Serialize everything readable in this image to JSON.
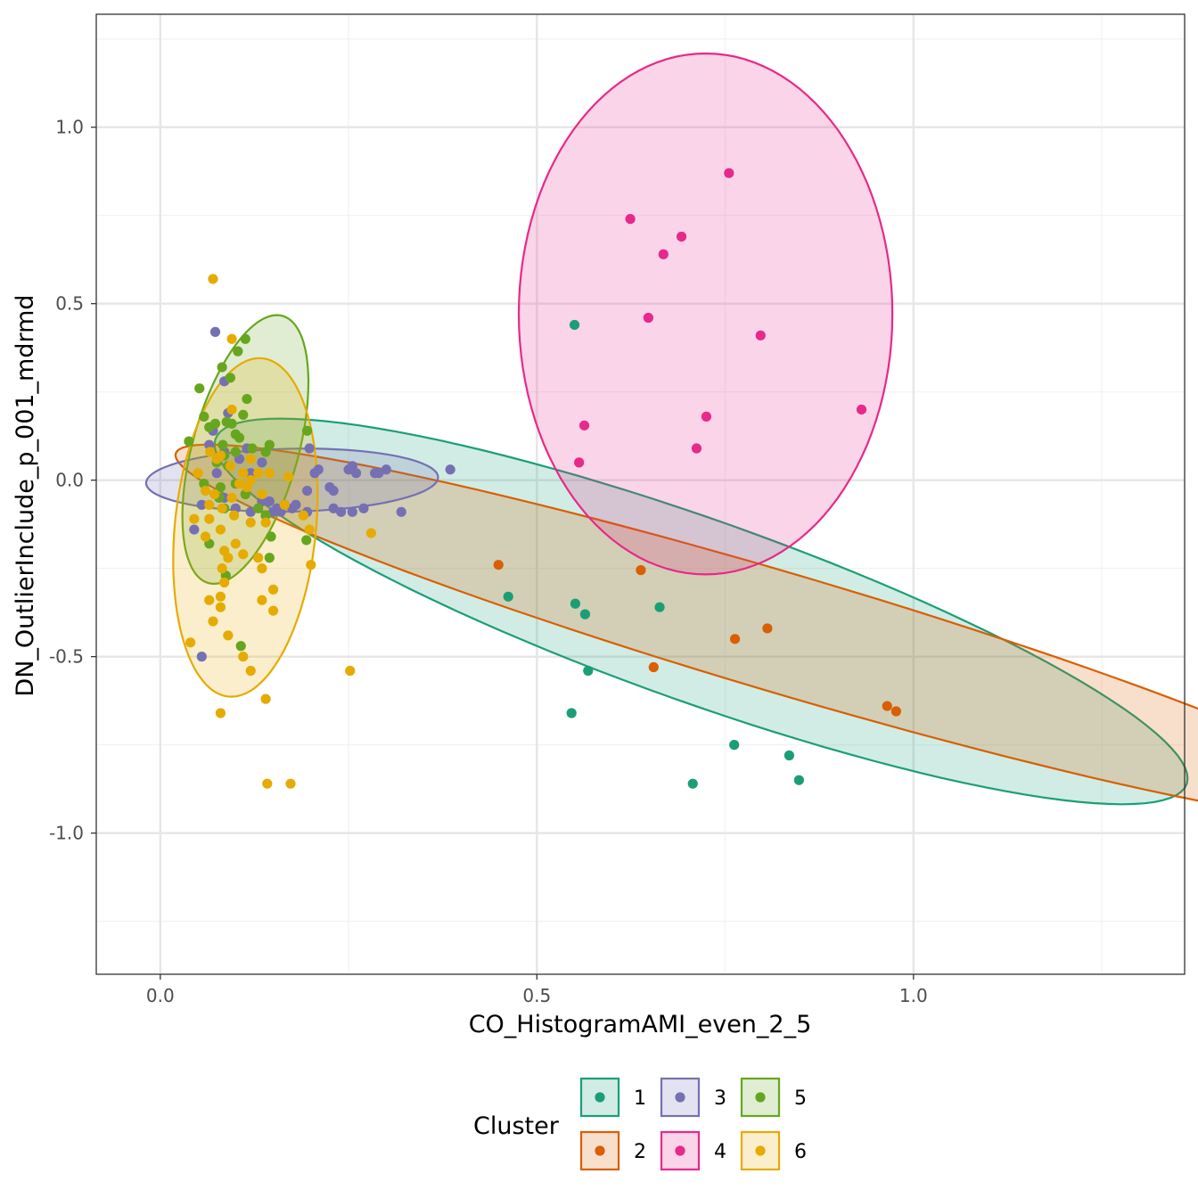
{
  "chart_data": {
    "type": "scatter",
    "title": "",
    "xlabel": "CO_HistogramAMI_even_2_5",
    "ylabel": "DN_OutlierInclude_p_001_mdrmd",
    "xlim": [
      -0.085,
      1.36
    ],
    "ylim": [
      -1.4,
      1.32
    ],
    "x_ticks": [
      0.0,
      0.5,
      1.0
    ],
    "x_tick_labels": [
      "0.0",
      "0.5",
      "1.0"
    ],
    "y_ticks": [
      -1.0,
      -0.5,
      0.0,
      0.5,
      1.0
    ],
    "y_tick_labels": [
      "-1.0",
      "-0.5",
      "0.0",
      "0.5",
      "1.0"
    ],
    "grid": true,
    "legend": {
      "title": "Cluster",
      "position": "bottom"
    },
    "series": [
      {
        "name": "1",
        "color": "#1B9E77",
        "points": [
          [
            0.55,
            0.44
          ],
          [
            0.462,
            -0.33
          ],
          [
            0.551,
            -0.35
          ],
          [
            0.564,
            -0.38
          ],
          [
            0.568,
            -0.54
          ],
          [
            0.546,
            -0.66
          ],
          [
            0.663,
            -0.36
          ],
          [
            0.762,
            -0.75
          ],
          [
            0.835,
            -0.78
          ],
          [
            0.848,
            -0.85
          ],
          [
            0.707,
            -0.86
          ]
        ],
        "ellipse": {
          "center": [
            0.718,
            -0.372
          ],
          "semi_axes": [
            0.818,
            0.216
          ],
          "angle_deg": -39.5
        }
      },
      {
        "name": "2",
        "color": "#D95F02",
        "points": [
          [
            0.449,
            -0.24
          ],
          [
            0.638,
            -0.255
          ],
          [
            0.763,
            -0.45
          ],
          [
            0.806,
            -0.42
          ],
          [
            0.655,
            -0.53
          ],
          [
            0.965,
            -0.64
          ],
          [
            0.977,
            -0.655
          ]
        ],
        "ellipse": {
          "center": [
            0.831,
            -0.436
          ],
          "semi_axes": [
            0.961,
            0.149
          ],
          "angle_deg": -32.9
        }
      },
      {
        "name": "3",
        "color": "#7570B3",
        "points": [
          [
            0.073,
            0.42
          ],
          [
            0.085,
            0.28
          ],
          [
            0.09,
            0.19
          ],
          [
            0.07,
            0.14
          ],
          [
            0.065,
            0.1
          ],
          [
            0.085,
            0.08
          ],
          [
            0.115,
            0.09
          ],
          [
            0.105,
            0.06
          ],
          [
            0.135,
            0.05
          ],
          [
            0.075,
            0.02
          ],
          [
            0.12,
            0.02
          ],
          [
            0.055,
            -0.07
          ],
          [
            0.085,
            -0.05
          ],
          [
            0.1,
            -0.08
          ],
          [
            0.12,
            -0.09
          ],
          [
            0.135,
            -0.06
          ],
          [
            0.145,
            -0.06
          ],
          [
            0.14,
            -0.1
          ],
          [
            0.155,
            -0.08
          ],
          [
            0.165,
            -0.07
          ],
          [
            0.16,
            -0.09
          ],
          [
            0.175,
            -0.08
          ],
          [
            0.18,
            -0.07
          ],
          [
            0.195,
            -0.09
          ],
          [
            0.195,
            -0.03
          ],
          [
            0.205,
            0.02
          ],
          [
            0.21,
            0.03
          ],
          [
            0.198,
            0.09
          ],
          [
            0.225,
            -0.02
          ],
          [
            0.23,
            -0.03
          ],
          [
            0.23,
            -0.08
          ],
          [
            0.24,
            -0.09
          ],
          [
            0.255,
            -0.09
          ],
          [
            0.25,
            0.03
          ],
          [
            0.255,
            0.04
          ],
          [
            0.26,
            0.02
          ],
          [
            0.27,
            -0.08
          ],
          [
            0.285,
            0.02
          ],
          [
            0.29,
            0.02
          ],
          [
            0.3,
            0.03
          ],
          [
            0.32,
            -0.09
          ],
          [
            0.385,
            0.03
          ],
          [
            0.045,
            -0.14
          ],
          [
            0.055,
            -0.5
          ],
          [
            0.15,
            -0.09
          ]
        ],
        "ellipse": {
          "center": [
            0.175,
            0.0
          ],
          "semi_axes": [
            0.194,
            0.089
          ],
          "angle_deg": 3.0
        }
      },
      {
        "name": "4",
        "color": "#E7298A",
        "points": [
          [
            0.755,
            0.87
          ],
          [
            0.624,
            0.74
          ],
          [
            0.692,
            0.69
          ],
          [
            0.668,
            0.64
          ],
          [
            0.648,
            0.46
          ],
          [
            0.797,
            0.41
          ],
          [
            0.931,
            0.2
          ],
          [
            0.725,
            0.18
          ],
          [
            0.563,
            0.155
          ],
          [
            0.712,
            0.09
          ],
          [
            0.556,
            0.05
          ]
        ],
        "ellipse": {
          "center": [
            0.724,
            0.471
          ],
          "semi_axes": [
            0.248,
            0.738
          ],
          "angle_deg": 0.0
        }
      },
      {
        "name": "5",
        "color": "#66A61E",
        "points": [
          [
            0.113,
            0.4
          ],
          [
            0.103,
            0.365
          ],
          [
            0.082,
            0.32
          ],
          [
            0.093,
            0.29
          ],
          [
            0.052,
            0.26
          ],
          [
            0.115,
            0.23
          ],
          [
            0.058,
            0.18
          ],
          [
            0.11,
            0.185
          ],
          [
            0.088,
            0.165
          ],
          [
            0.073,
            0.16
          ],
          [
            0.065,
            0.15
          ],
          [
            0.095,
            0.16
          ],
          [
            0.1,
            0.13
          ],
          [
            0.105,
            0.12
          ],
          [
            0.038,
            0.11
          ],
          [
            0.083,
            0.1
          ],
          [
            0.122,
            0.09
          ],
          [
            0.14,
            0.08
          ],
          [
            0.145,
            0.1
          ],
          [
            0.1,
            0.08
          ],
          [
            0.085,
            0.07
          ],
          [
            0.075,
            0.05
          ],
          [
            0.09,
            0.04
          ],
          [
            0.195,
            0.14
          ],
          [
            0.058,
            -0.01
          ],
          [
            0.08,
            -0.02
          ],
          [
            0.078,
            -0.05
          ],
          [
            0.085,
            -0.08
          ],
          [
            0.113,
            -0.04
          ],
          [
            0.13,
            -0.08
          ],
          [
            0.14,
            -0.1
          ],
          [
            0.147,
            -0.16
          ],
          [
            0.194,
            -0.17
          ],
          [
            0.065,
            -0.18
          ],
          [
            0.145,
            -0.22
          ],
          [
            0.087,
            -0.27
          ],
          [
            0.107,
            -0.47
          ],
          [
            0.1,
            -0.01
          ]
        ],
        "ellipse": {
          "center": [
            0.113,
            0.087
          ],
          "semi_axes": [
            0.383,
            0.072
          ],
          "angle_deg": 83.5
        }
      },
      {
        "name": "6",
        "color": "#E6AB02",
        "points": [
          [
            0.07,
            0.57
          ],
          [
            0.095,
            0.4
          ],
          [
            0.095,
            0.2
          ],
          [
            0.066,
            0.08
          ],
          [
            0.08,
            0.07
          ],
          [
            0.12,
            0.06
          ],
          [
            0.093,
            0.04
          ],
          [
            0.075,
            0.06
          ],
          [
            0.05,
            0.02
          ],
          [
            0.11,
            0.02
          ],
          [
            0.12,
            0.0
          ],
          [
            0.13,
            0.02
          ],
          [
            0.145,
            0.02
          ],
          [
            0.105,
            -0.01
          ],
          [
            0.115,
            -0.02
          ],
          [
            0.06,
            -0.03
          ],
          [
            0.072,
            -0.04
          ],
          [
            0.095,
            -0.05
          ],
          [
            0.135,
            -0.04
          ],
          [
            0.065,
            -0.07
          ],
          [
            0.082,
            -0.08
          ],
          [
            0.098,
            -0.1
          ],
          [
            0.065,
            -0.11
          ],
          [
            0.045,
            -0.11
          ],
          [
            0.12,
            -0.12
          ],
          [
            0.14,
            -0.12
          ],
          [
            0.08,
            -0.14
          ],
          [
            0.06,
            -0.16
          ],
          [
            0.1,
            -0.18
          ],
          [
            0.085,
            -0.2
          ],
          [
            0.11,
            -0.21
          ],
          [
            0.09,
            -0.22
          ],
          [
            0.13,
            -0.22
          ],
          [
            0.082,
            -0.25
          ],
          [
            0.135,
            -0.25
          ],
          [
            0.085,
            -0.29
          ],
          [
            0.15,
            -0.31
          ],
          [
            0.065,
            -0.34
          ],
          [
            0.08,
            -0.33
          ],
          [
            0.08,
            -0.36
          ],
          [
            0.135,
            -0.34
          ],
          [
            0.15,
            -0.37
          ],
          [
            0.07,
            -0.4
          ],
          [
            0.09,
            -0.44
          ],
          [
            0.04,
            -0.46
          ],
          [
            0.11,
            -0.5
          ],
          [
            0.12,
            -0.54
          ],
          [
            0.14,
            -0.62
          ],
          [
            0.08,
            -0.66
          ],
          [
            0.252,
            -0.54
          ],
          [
            0.142,
            -0.86
          ],
          [
            0.173,
            -0.86
          ],
          [
            0.2,
            -0.24
          ],
          [
            0.198,
            -0.14
          ],
          [
            0.19,
            -0.1
          ],
          [
            0.28,
            -0.15
          ],
          [
            0.165,
            -0.07
          ],
          [
            0.17,
            0.01
          ]
        ],
        "ellipse": {
          "center": [
            0.113,
            -0.134
          ],
          "semi_axes": [
            0.48,
            0.094
          ],
          "angle_deg": 87.7
        }
      }
    ]
  }
}
